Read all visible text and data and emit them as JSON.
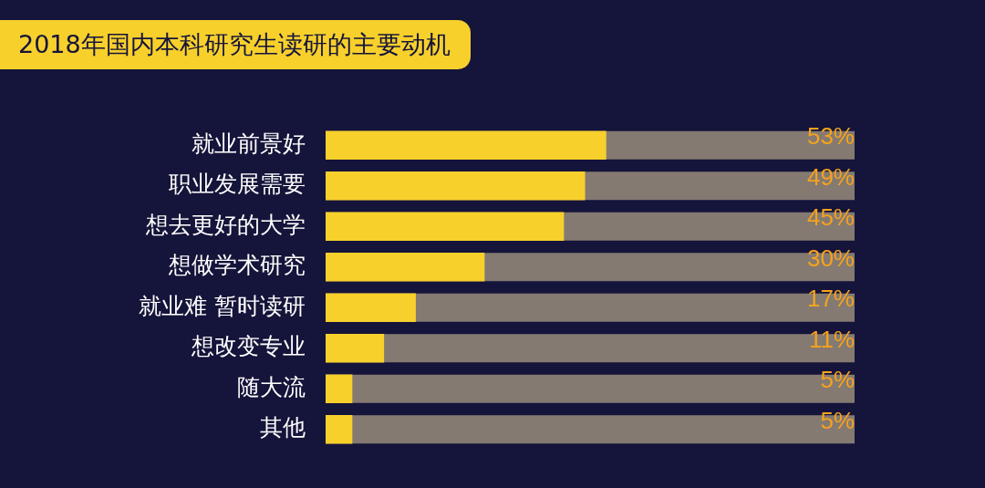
{
  "chart_data": {
    "type": "bar",
    "orientation": "horizontal",
    "title": "2018年国内本科研究生读研的主要动机",
    "categories": [
      "就业前景好",
      "职业发展需要",
      "想去更好的大学",
      "想做学术研究",
      "就业难 暂时读研",
      "想改变专业",
      "随大流",
      "其他"
    ],
    "values": [
      53,
      49,
      45,
      30,
      17,
      11,
      5,
      5
    ],
    "value_labels": [
      "53%",
      "49%",
      "45%",
      "30%",
      "17%",
      "11%",
      "5%",
      "5%"
    ],
    "color": "#f7d02c",
    "xlim": [
      0,
      100
    ],
    "tick_labels": "y",
    "legend": false
  }
}
